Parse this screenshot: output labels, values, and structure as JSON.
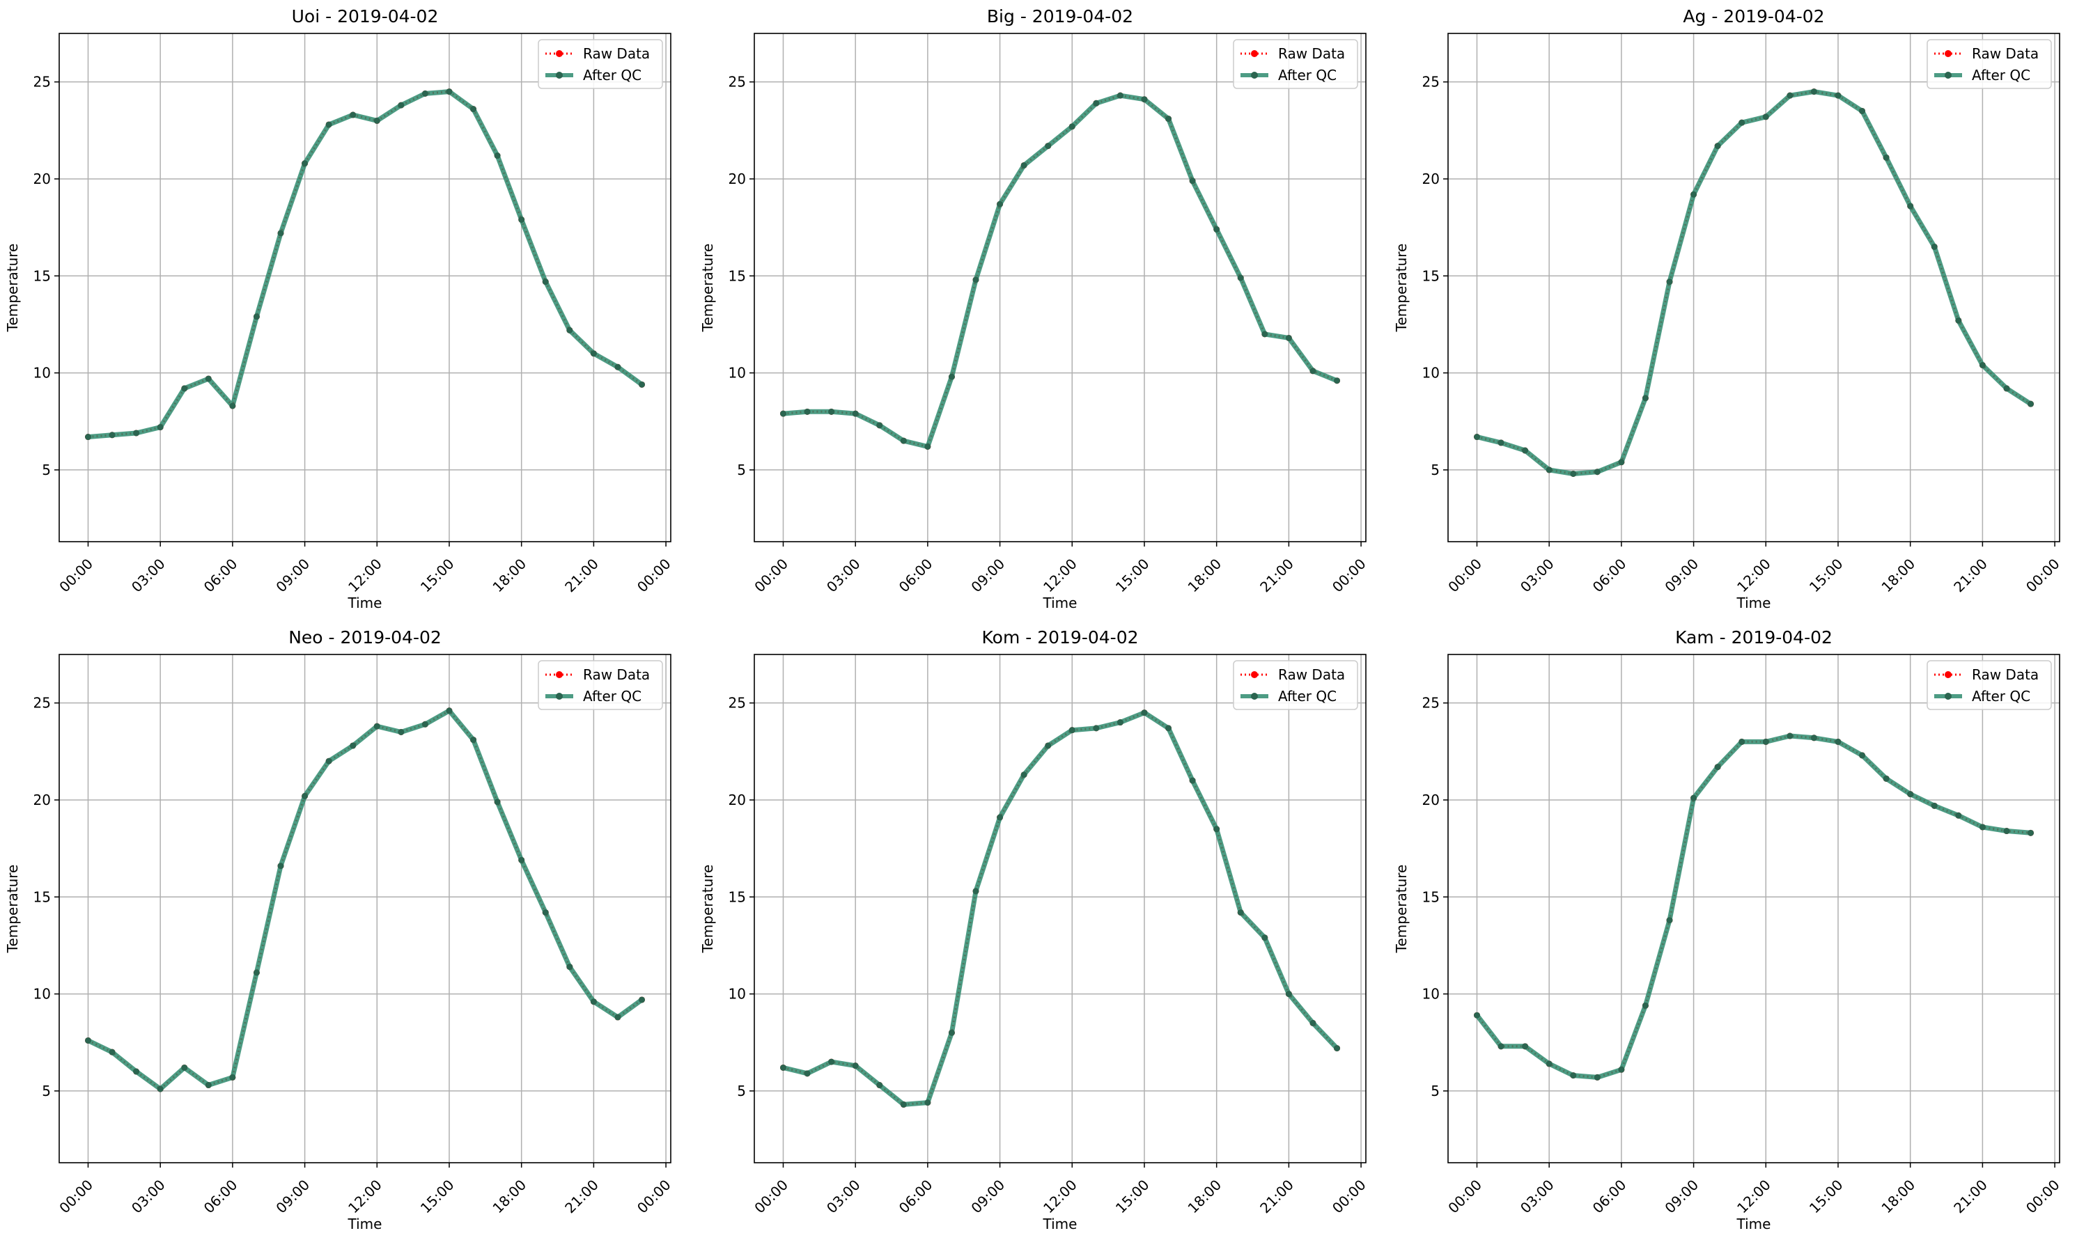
{
  "colors": {
    "raw": "#ff0000",
    "qc_line": "#2e8b6e",
    "qc_marker": "#2b6550",
    "grid": "#b0b0b0",
    "axes": "#000000",
    "legend_frame": "#cccccc"
  },
  "legend": {
    "raw_label": "Raw Data",
    "qc_label": "After QC",
    "placement": "upper right"
  },
  "shared": {
    "xlabel": "Time",
    "ylabel": "Temperature",
    "xticks": [
      "00:00",
      "03:00",
      "06:00",
      "09:00",
      "12:00",
      "15:00",
      "18:00",
      "21:00",
      "00:00"
    ],
    "yticks": [
      "5",
      "10",
      "15",
      "20",
      "25"
    ]
  },
  "chart_data": [
    {
      "type": "line",
      "title": "Uoi - 2019-04-02",
      "xlabel": "Time",
      "ylabel": "Temperature",
      "x_hours": [
        0,
        1,
        2,
        3,
        4,
        5,
        6,
        7,
        8,
        9,
        10,
        11,
        12,
        13,
        14,
        15,
        16,
        17,
        18,
        19,
        20,
        21,
        22,
        23
      ],
      "xlim_hours": [
        -1.2,
        24.2
      ],
      "ylim": [
        1.3,
        27.5
      ],
      "grid": true,
      "legend": "top-right",
      "series": [
        {
          "name": "Raw Data",
          "values": [
            6.7,
            6.8,
            6.9,
            7.2,
            9.2,
            9.7,
            8.3,
            12.9,
            17.2,
            20.8,
            22.8,
            23.3,
            23.0,
            23.8,
            24.4,
            24.5,
            23.6,
            21.2,
            17.9,
            14.7,
            12.2,
            11.0,
            10.3,
            9.4
          ]
        },
        {
          "name": "After QC",
          "values": [
            6.7,
            6.8,
            6.9,
            7.2,
            9.2,
            9.7,
            8.3,
            12.9,
            17.2,
            20.8,
            22.8,
            23.3,
            23.0,
            23.8,
            24.4,
            24.5,
            23.6,
            21.2,
            17.9,
            14.7,
            12.2,
            11.0,
            10.3,
            9.4
          ]
        }
      ]
    },
    {
      "type": "line",
      "title": "Big - 2019-04-02",
      "xlabel": "Time",
      "ylabel": "Temperature",
      "x_hours": [
        0,
        1,
        2,
        3,
        4,
        5,
        6,
        7,
        8,
        9,
        10,
        11,
        12,
        13,
        14,
        15,
        16,
        17,
        18,
        19,
        20,
        21,
        22,
        23
      ],
      "xlim_hours": [
        -1.2,
        24.2
      ],
      "ylim": [
        1.3,
        27.5
      ],
      "grid": true,
      "legend": "top-right",
      "series": [
        {
          "name": "Raw Data",
          "values": [
            7.9,
            8.0,
            8.0,
            7.9,
            7.3,
            6.5,
            6.2,
            9.8,
            14.8,
            18.7,
            20.7,
            21.7,
            22.7,
            23.9,
            24.3,
            24.1,
            23.1,
            19.9,
            17.4,
            14.9,
            12.0,
            11.8,
            10.1,
            9.6
          ]
        },
        {
          "name": "After QC",
          "values": [
            7.9,
            8.0,
            8.0,
            7.9,
            7.3,
            6.5,
            6.2,
            9.8,
            14.8,
            18.7,
            20.7,
            21.7,
            22.7,
            23.9,
            24.3,
            24.1,
            23.1,
            19.9,
            17.4,
            14.9,
            12.0,
            11.8,
            10.1,
            9.6
          ]
        }
      ]
    },
    {
      "type": "line",
      "title": "Ag - 2019-04-02",
      "xlabel": "Time",
      "ylabel": "Temperature",
      "x_hours": [
        0,
        1,
        2,
        3,
        4,
        5,
        6,
        7,
        8,
        9,
        10,
        11,
        12,
        13,
        14,
        15,
        16,
        17,
        18,
        19,
        20,
        21,
        22,
        23
      ],
      "xlim_hours": [
        -1.2,
        24.2
      ],
      "ylim": [
        1.3,
        27.5
      ],
      "grid": true,
      "legend": "top-right",
      "series": [
        {
          "name": "Raw Data",
          "values": [
            6.7,
            6.4,
            6.0,
            5.0,
            4.8,
            4.9,
            5.4,
            8.7,
            14.7,
            19.2,
            21.7,
            22.9,
            23.2,
            24.3,
            24.5,
            24.3,
            23.5,
            21.1,
            18.6,
            16.5,
            12.7,
            10.4,
            9.2,
            8.4
          ]
        },
        {
          "name": "After QC",
          "values": [
            6.7,
            6.4,
            6.0,
            5.0,
            4.8,
            4.9,
            5.4,
            8.7,
            14.7,
            19.2,
            21.7,
            22.9,
            23.2,
            24.3,
            24.5,
            24.3,
            23.5,
            21.1,
            18.6,
            16.5,
            12.7,
            10.4,
            9.2,
            8.4
          ]
        }
      ]
    },
    {
      "type": "line",
      "title": "Neo - 2019-04-02",
      "xlabel": "Time",
      "ylabel": "Temperature",
      "x_hours": [
        0,
        1,
        2,
        3,
        4,
        5,
        6,
        7,
        8,
        9,
        10,
        11,
        12,
        13,
        14,
        15,
        16,
        17,
        18,
        19,
        20,
        21,
        22,
        23
      ],
      "xlim_hours": [
        -1.2,
        24.2
      ],
      "ylim": [
        1.3,
        27.5
      ],
      "grid": true,
      "legend": "top-right",
      "series": [
        {
          "name": "Raw Data",
          "values": [
            7.6,
            7.0,
            6.0,
            5.1,
            6.2,
            5.3,
            5.7,
            11.1,
            16.6,
            20.2,
            22.0,
            22.8,
            23.8,
            23.5,
            23.9,
            24.6,
            23.1,
            19.9,
            16.9,
            14.2,
            11.4,
            9.6,
            8.8,
            9.7
          ]
        },
        {
          "name": "After QC",
          "values": [
            7.6,
            7.0,
            6.0,
            5.1,
            6.2,
            5.3,
            5.7,
            11.1,
            16.6,
            20.2,
            22.0,
            22.8,
            23.8,
            23.5,
            23.9,
            24.6,
            23.1,
            19.9,
            16.9,
            14.2,
            11.4,
            9.6,
            8.8,
            9.7
          ]
        }
      ]
    },
    {
      "type": "line",
      "title": "Kom - 2019-04-02",
      "xlabel": "Time",
      "ylabel": "Temperature",
      "x_hours": [
        0,
        1,
        2,
        3,
        4,
        5,
        6,
        7,
        8,
        9,
        10,
        11,
        12,
        13,
        14,
        15,
        16,
        17,
        18,
        19,
        20,
        21,
        22,
        23
      ],
      "xlim_hours": [
        -1.2,
        24.2
      ],
      "ylim": [
        1.3,
        27.5
      ],
      "grid": true,
      "legend": "top-right",
      "series": [
        {
          "name": "Raw Data",
          "values": [
            6.2,
            5.9,
            6.5,
            6.3,
            5.3,
            4.3,
            4.4,
            8.0,
            15.3,
            19.1,
            21.3,
            22.8,
            23.6,
            23.7,
            24.0,
            24.5,
            23.7,
            21.0,
            18.5,
            14.2,
            12.9,
            10.0,
            8.5,
            7.2
          ]
        },
        {
          "name": "After QC",
          "values": [
            6.2,
            5.9,
            6.5,
            6.3,
            5.3,
            4.3,
            4.4,
            8.0,
            15.3,
            19.1,
            21.3,
            22.8,
            23.6,
            23.7,
            24.0,
            24.5,
            23.7,
            21.0,
            18.5,
            14.2,
            12.9,
            10.0,
            8.5,
            7.2
          ]
        }
      ]
    },
    {
      "type": "line",
      "title": "Kam - 2019-04-02",
      "xlabel": "Time",
      "ylabel": "Temperature",
      "x_hours": [
        0,
        1,
        2,
        3,
        4,
        5,
        6,
        7,
        8,
        9,
        10,
        11,
        12,
        13,
        14,
        15,
        16,
        17,
        18,
        19,
        20,
        21,
        22,
        23
      ],
      "xlim_hours": [
        -1.2,
        24.2
      ],
      "ylim": [
        1.3,
        27.5
      ],
      "grid": true,
      "legend": "top-right",
      "series": [
        {
          "name": "Raw Data",
          "values": [
            8.9,
            7.3,
            7.3,
            6.4,
            5.8,
            5.7,
            6.1,
            9.4,
            13.8,
            20.1,
            21.7,
            23.0,
            23.0,
            23.3,
            23.2,
            23.0,
            22.3,
            21.1,
            20.3,
            19.7,
            19.2,
            18.6,
            18.4,
            18.3
          ]
        },
        {
          "name": "After QC",
          "values": [
            8.9,
            7.3,
            7.3,
            6.4,
            5.8,
            5.7,
            6.1,
            9.4,
            13.8,
            20.1,
            21.7,
            23.0,
            23.0,
            23.3,
            23.2,
            23.0,
            22.3,
            21.1,
            20.3,
            19.7,
            19.2,
            18.6,
            18.4,
            18.3
          ]
        }
      ]
    }
  ]
}
